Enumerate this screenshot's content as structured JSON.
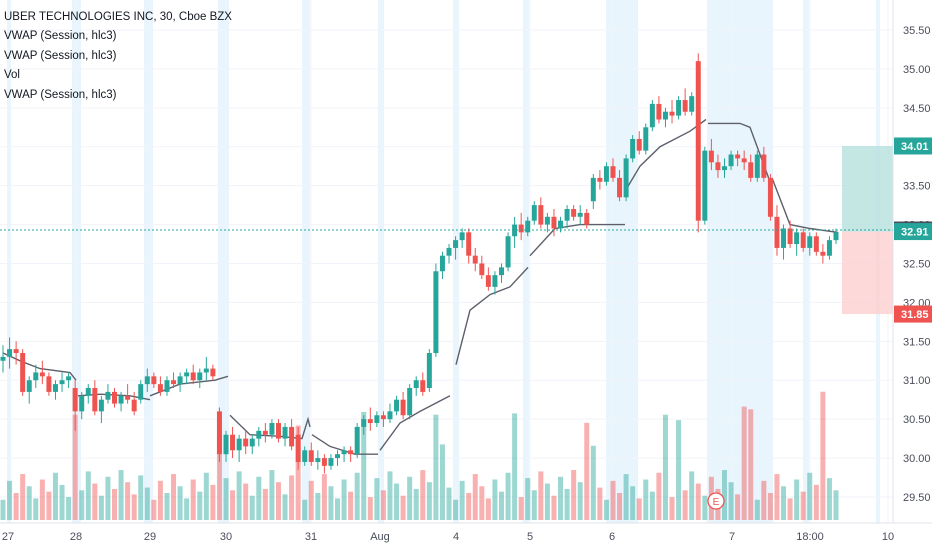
{
  "legend": {
    "title": "UBER TECHNOLOGIES INC, 30, Cboe BZX",
    "studies": [
      "VWAP (Session, hlc3)",
      "VWAP (Session, hlc3)",
      "Vol",
      "VWAP (Session, hlc3)"
    ]
  },
  "chart_data": {
    "type": "candlestick",
    "symbol": "UBER TECHNOLOGIES INC",
    "interval": "30",
    "exchange": "Cboe BZX",
    "y_ticks": [
      "35.50",
      "35.00",
      "34.50",
      "34.00",
      "33.50",
      "33.00",
      "32.50",
      "32.00",
      "31.50",
      "31.00",
      "30.50",
      "30.00",
      "29.50"
    ],
    "ylim": [
      29.3,
      35.75
    ],
    "x_ticks": [
      "27",
      "28",
      "29",
      "30",
      "31",
      "Aug",
      "4",
      "5",
      "6",
      "7",
      "18:00",
      "10"
    ],
    "current_price": "32.93",
    "position": {
      "target": "34.01",
      "entry": "32.91",
      "stop": "31.85"
    },
    "earnings_marker": "E",
    "colors": {
      "up": "#26a69a",
      "down": "#ef5350",
      "vwap": "#5d606b",
      "profit_zone": "#b2dfdb",
      "loss_zone": "#fccfcf",
      "session_shade": "#e3f2fd"
    }
  }
}
